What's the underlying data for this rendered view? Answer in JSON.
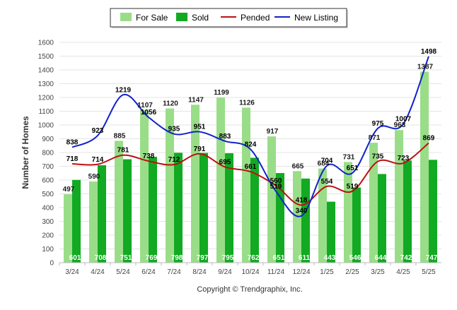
{
  "chart_data": {
    "type": "bar",
    "title": "",
    "xlabel": "",
    "ylabel": "Number of Homes",
    "ylim": [
      0,
      1600
    ],
    "yticks": [
      "0",
      "100",
      "200",
      "300",
      "400",
      "500",
      "600",
      "700",
      "800",
      "900",
      "1000",
      "1100",
      "1200",
      "1300",
      "1400",
      "1500",
      "1600"
    ],
    "categories": [
      "3/24",
      "4/24",
      "5/24",
      "6/24",
      "7/24",
      "8/24",
      "9/24",
      "10/24",
      "11/24",
      "12/24",
      "1/25",
      "2/25",
      "3/25",
      "4/25",
      "5/25"
    ],
    "grid": true,
    "legend_position": "top-center",
    "series": [
      {
        "name": "For Sale",
        "kind": "bar",
        "color": "#99dd88",
        "values": [
          497,
          590,
          885,
          1107,
          1120,
          1147,
          1199,
          1126,
          917,
          665,
          684,
          731,
          871,
          963,
          1387
        ]
      },
      {
        "name": "Sold",
        "kind": "bar",
        "color": "#11aa22",
        "values": [
          601,
          708,
          751,
          769,
          798,
          797,
          795,
          762,
          651,
          611,
          443,
          546,
          644,
          742,
          747
        ]
      },
      {
        "name": "Pended",
        "kind": "line",
        "color": "#bb1111",
        "values": [
          718,
          714,
          781,
          738,
          712,
          791,
          695,
          661,
          560,
          418,
          554,
          519,
          735,
          723,
          869
        ]
      },
      {
        "name": "New Listing",
        "kind": "line",
        "color": "#1122cc",
        "values": [
          838,
          923,
          1219,
          1056,
          935,
          951,
          883,
          824,
          519,
          340,
          704,
          651,
          975,
          1007,
          1498
        ]
      }
    ],
    "copyright": "Copyright © Trendgraphix, Inc."
  }
}
